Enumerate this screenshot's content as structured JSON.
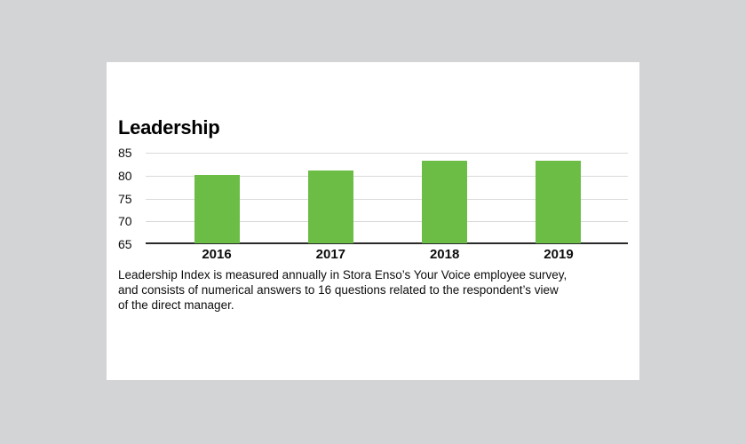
{
  "page": {
    "background_color": "#d2d4d6",
    "card_background_color": "#ffffff"
  },
  "chart_data": {
    "type": "bar",
    "title": "Leadership",
    "categories": [
      "2016",
      "2017",
      "2018",
      "2019"
    ],
    "values": [
      80,
      81,
      83,
      83
    ],
    "xlabel": "",
    "ylabel": "",
    "ylim": [
      65,
      85
    ],
    "yticks": [
      85,
      80,
      75,
      70,
      65
    ],
    "grid": true,
    "legend": false,
    "bar_color": "#6cbd45",
    "gridline_color": "#d9d9d9",
    "axis_line_color": "#2a2a2a"
  },
  "caption": {
    "lines": [
      "Leadership Index is measured annually in Stora Enso’s Your Voice employee survey,",
      "and consists of numerical answers to 16 questions related to the respondent’s view",
      "of the direct manager."
    ]
  }
}
